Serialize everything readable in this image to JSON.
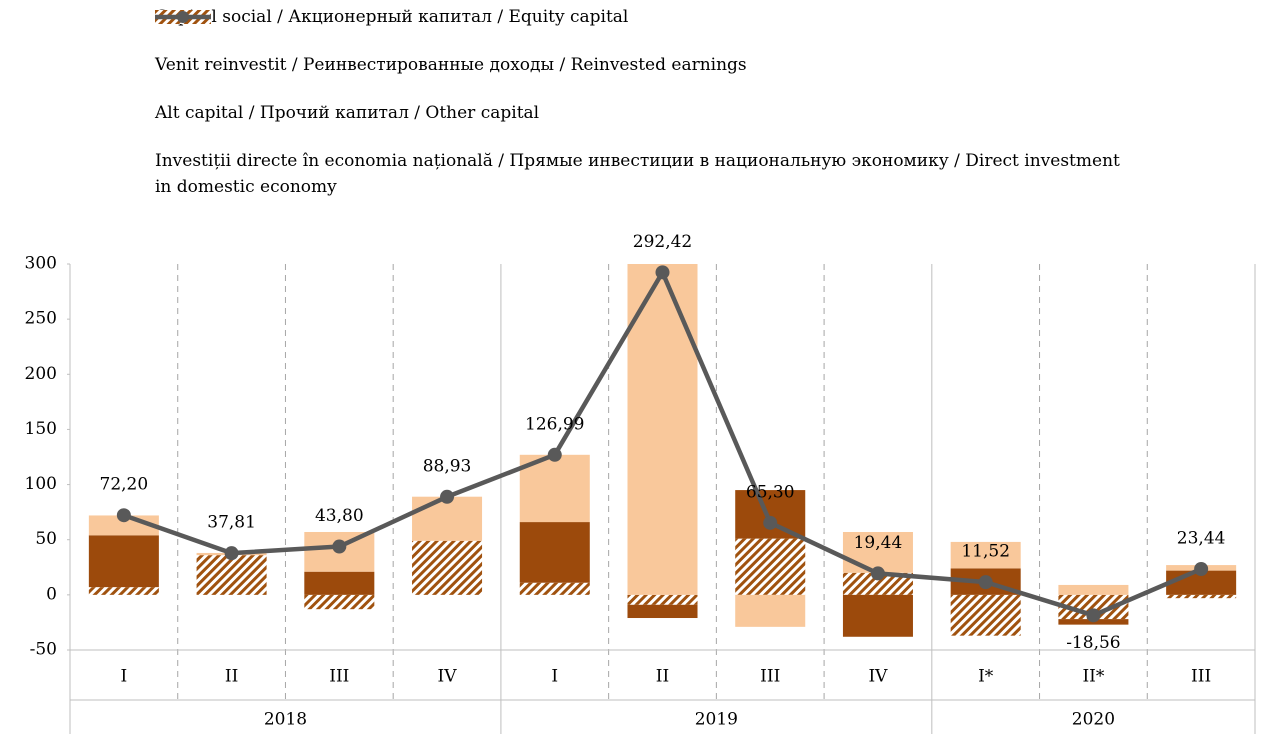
{
  "chart_data": {
    "type": "bar",
    "groups": [
      {
        "label": "2018",
        "categories": [
          "I",
          "II",
          "III",
          "IV"
        ]
      },
      {
        "label": "2019",
        "categories": [
          "I",
          "II",
          "III",
          "IV"
        ]
      },
      {
        "label": "2020",
        "categories": [
          "I*",
          "II*",
          "III"
        ]
      }
    ],
    "series": [
      {
        "name": "Capital social / Акционерный капитал / Equity capital",
        "color": "#f9c89b",
        "values": [
          18,
          2,
          36,
          40,
          61,
          313,
          -29,
          37,
          24,
          9,
          5
        ]
      },
      {
        "name": "Venit reinvestit / Реинвестированные доходы / Reinvested earnings",
        "color": "#9c4a0c",
        "values": [
          47,
          0,
          21,
          0,
          55,
          -12,
          44,
          -38,
          24,
          -5,
          22
        ]
      },
      {
        "name": "Alt capital / Прочий капитал / Other capital",
        "color": "#a0520f",
        "pattern": "hatch",
        "values": [
          7,
          36,
          -13,
          49,
          11,
          -9,
          51,
          20,
          -37,
          -22,
          -3
        ]
      },
      {
        "name": "Investiții directe în economia națională / Прямые инвестиции в национальную экономику / Direct investment in domestic economy",
        "type": "line",
        "color": "#595959",
        "values": [
          72.2,
          37.81,
          43.8,
          88.93,
          126.99,
          292.42,
          65.3,
          19.44,
          11.52,
          -18.56,
          23.44
        ],
        "value_labels": [
          "72,20",
          "37,81",
          "43,80",
          "88,93",
          "126,99",
          "292,42",
          "65,30",
          "19,44",
          "11,52",
          "-18,56",
          "23,44"
        ]
      }
    ],
    "ylim": [
      -50,
      300
    ],
    "yticks": [
      -50,
      0,
      50,
      100,
      150,
      200,
      250,
      300
    ]
  }
}
